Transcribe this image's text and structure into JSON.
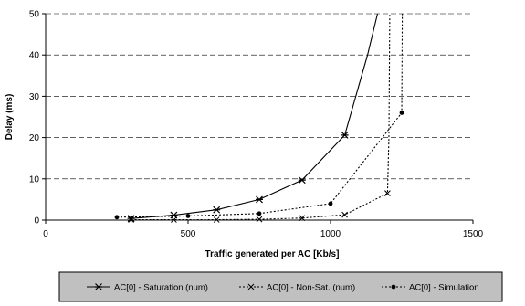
{
  "chart_data": {
    "type": "line",
    "xlabel": "Traffic generated per AC [Kb/s]",
    "ylabel": "Delay (ms)",
    "xlim": [
      0,
      1500
    ],
    "ylim": [
      0,
      50
    ],
    "x_ticks": [
      0,
      500,
      1000,
      1500
    ],
    "y_ticks": [
      0,
      10,
      20,
      30,
      40,
      50
    ],
    "grid": "horizontal dashed",
    "legend_placement": "bottom",
    "series": [
      {
        "name": "AC[0] - Saturation (num)",
        "style": "solid",
        "marker": "x-cross",
        "color": "#000000",
        "points": [
          [
            300,
            0.4
          ],
          [
            450,
            1.2
          ],
          [
            600,
            2.5
          ],
          [
            750,
            5.0
          ],
          [
            900,
            9.7
          ],
          [
            1050,
            20.6
          ],
          [
            1130,
            40.0
          ],
          [
            1165,
            50.0
          ]
        ],
        "marked": [
          0,
          1,
          2,
          3,
          4,
          5
        ]
      },
      {
        "name": "AC[0] - Non-Sat. (num)",
        "style": "dotted",
        "marker": "x",
        "color": "#000000",
        "points": [
          [
            300,
            0.1
          ],
          [
            450,
            0.1
          ],
          [
            600,
            0.1
          ],
          [
            750,
            0.2
          ],
          [
            900,
            0.5
          ],
          [
            1050,
            1.3
          ],
          [
            1200,
            6.5
          ],
          [
            1205,
            20.0
          ],
          [
            1208,
            50.0
          ]
        ],
        "marked": [
          0,
          1,
          2,
          3,
          4,
          5,
          6
        ]
      },
      {
        "name": "AC[0] - Simulation",
        "style": "dotted",
        "marker": "dot",
        "color": "#000000",
        "points": [
          [
            250,
            0.7
          ],
          [
            500,
            1.0
          ],
          [
            750,
            1.6
          ],
          [
            1000,
            4.0
          ],
          [
            1250,
            26.0
          ],
          [
            1252,
            50.0
          ]
        ],
        "marked": [
          0,
          1,
          2,
          3,
          4
        ]
      }
    ]
  }
}
